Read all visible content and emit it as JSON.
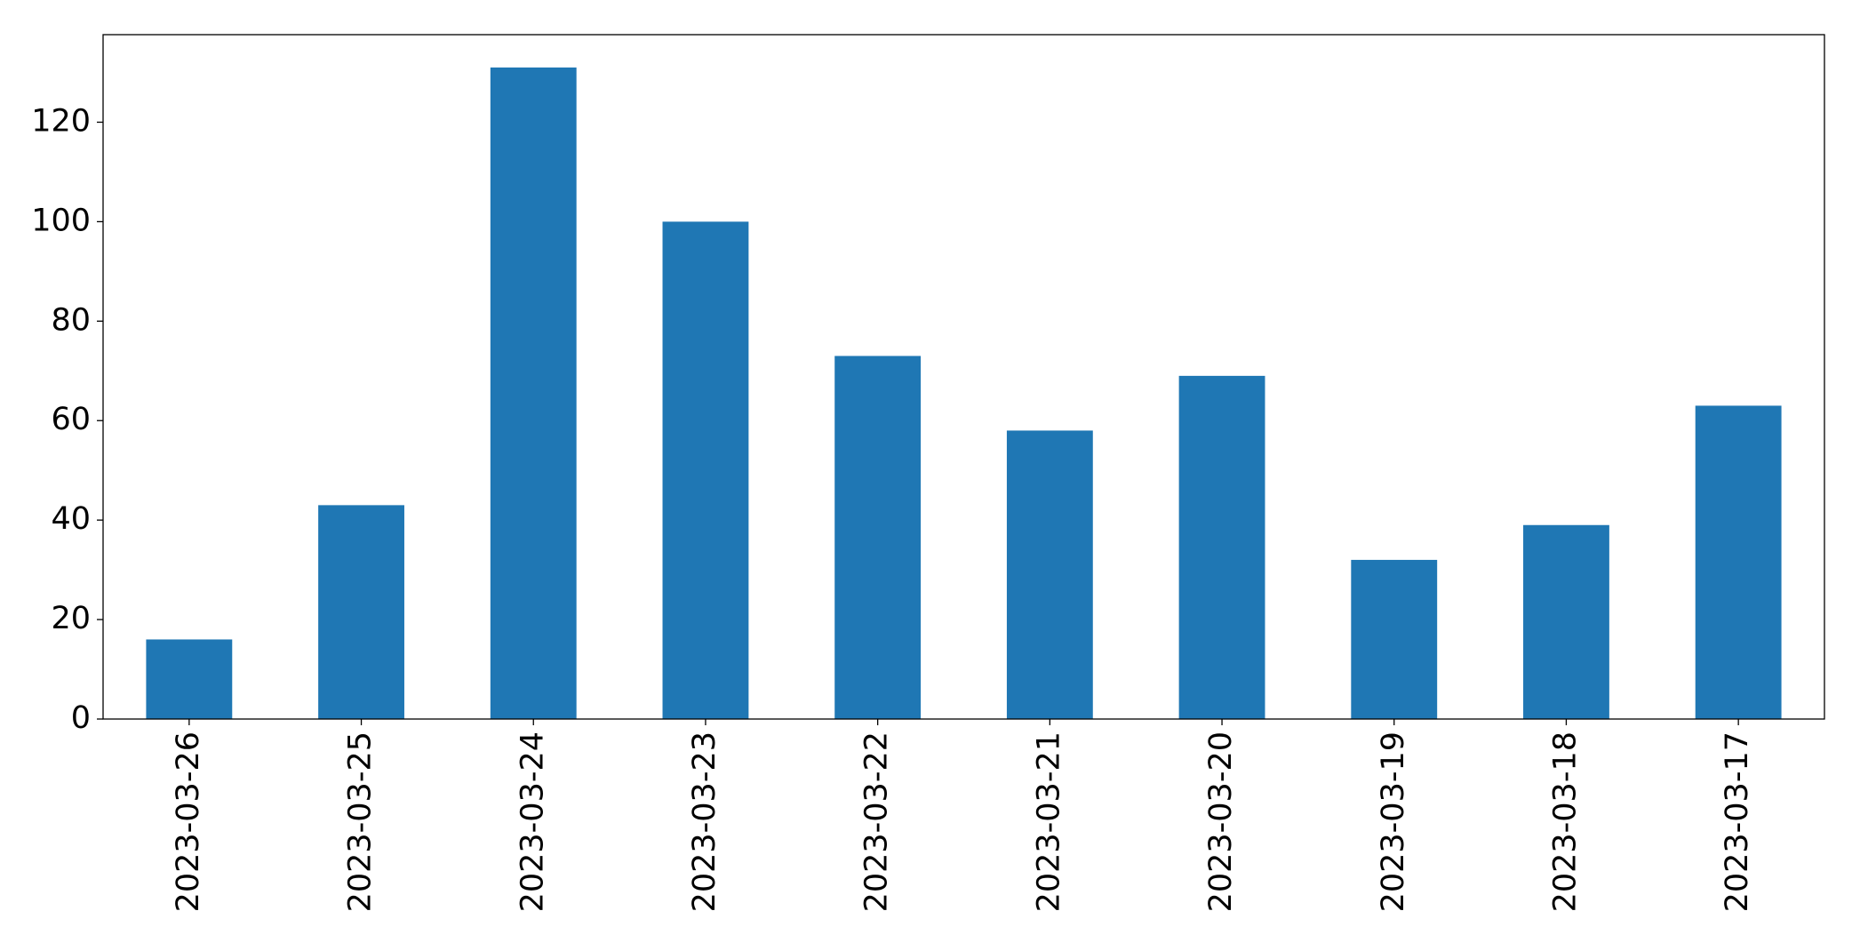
{
  "chart_data": {
    "type": "bar",
    "categories": [
      "2023-03-26",
      "2023-03-25",
      "2023-03-24",
      "2023-03-23",
      "2023-03-22",
      "2023-03-21",
      "2023-03-20",
      "2023-03-19",
      "2023-03-18",
      "2023-03-17"
    ],
    "values": [
      16,
      43,
      131,
      100,
      73,
      58,
      69,
      32,
      39,
      63
    ],
    "color": "#1f77b4",
    "ylim": [
      0,
      137.6
    ],
    "yticks": [
      0,
      20,
      40,
      60,
      80,
      100,
      120
    ],
    "grid": false
  }
}
